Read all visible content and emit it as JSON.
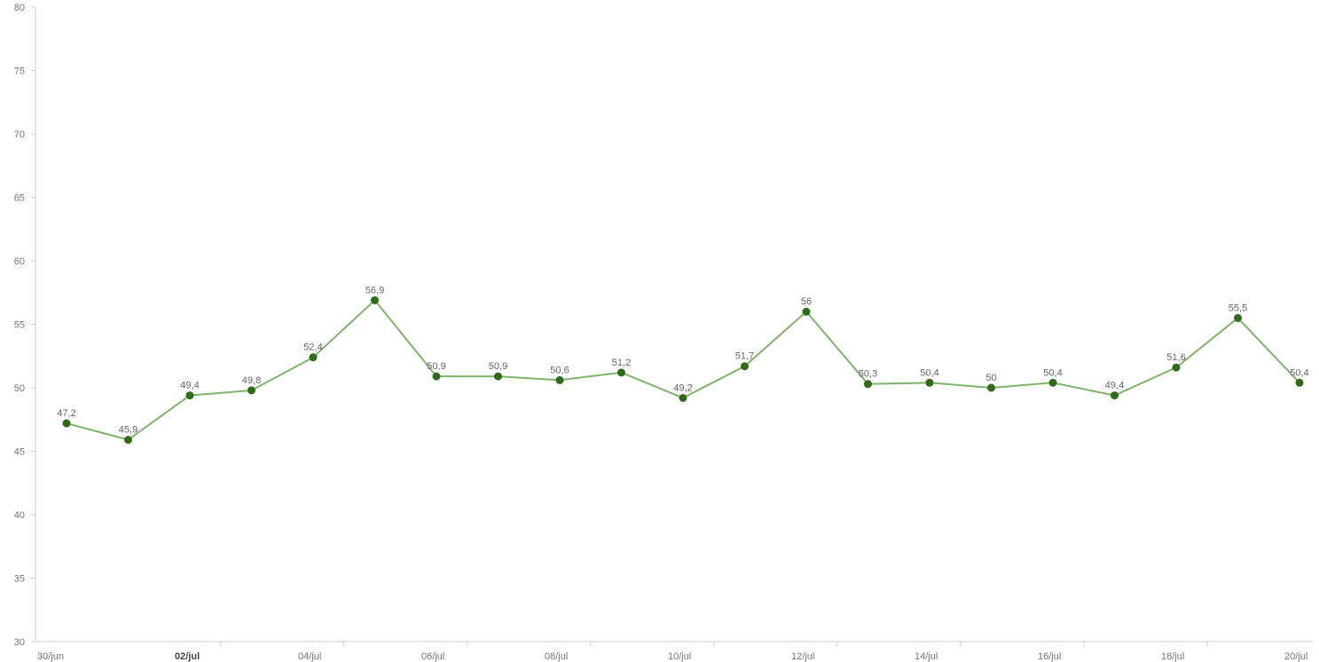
{
  "chart_data": {
    "type": "line",
    "title": "",
    "xlabel": "",
    "ylabel": "",
    "ylim": [
      30,
      80
    ],
    "y_ticks": [
      30,
      35,
      40,
      45,
      50,
      55,
      60,
      65,
      70,
      75,
      80
    ],
    "x_ticks": [
      "30/jun",
      "02/jul",
      "04/jul",
      "06/jul",
      "08/jul",
      "10/jul",
      "12/jul",
      "14/jul",
      "16/jul",
      "18/jul",
      "20/jul"
    ],
    "x_tick_emphasis": "02/jul",
    "grid": false,
    "legend": "none",
    "colors": {
      "line": "#7fb46a",
      "marker": "#2f6b1a"
    },
    "series": [
      {
        "x": [
          "2022-06-30",
          "2022-07-01",
          "2022-07-02",
          "2022-07-03",
          "2022-07-04",
          "2022-07-05",
          "2022-07-06",
          "2022-07-07",
          "2022-07-08",
          "2022-07-09",
          "2022-07-10",
          "2022-07-11",
          "2022-07-12",
          "2022-07-13",
          "2022-07-14",
          "2022-07-15",
          "2022-07-16",
          "2022-07-17",
          "2022-07-18",
          "2022-07-19",
          "2022-07-20"
        ],
        "values": [
          47.2,
          45.9,
          49.4,
          49.8,
          52.4,
          56.9,
          50.9,
          50.9,
          50.6,
          51.2,
          49.2,
          51.7,
          56,
          50.3,
          50.4,
          50,
          50.4,
          49.4,
          51.6,
          55.5,
          50.4
        ],
        "labels": [
          "47,2",
          "45,9",
          "49,4",
          "49,8",
          "52,4",
          "56,9",
          "50,9",
          "50,9",
          "50,6",
          "51,2",
          "49,2",
          "51,7",
          "56",
          "50,3",
          "50,4",
          "50",
          "50,4",
          "49,4",
          "51,6",
          "55,5",
          "50,4"
        ]
      }
    ]
  }
}
